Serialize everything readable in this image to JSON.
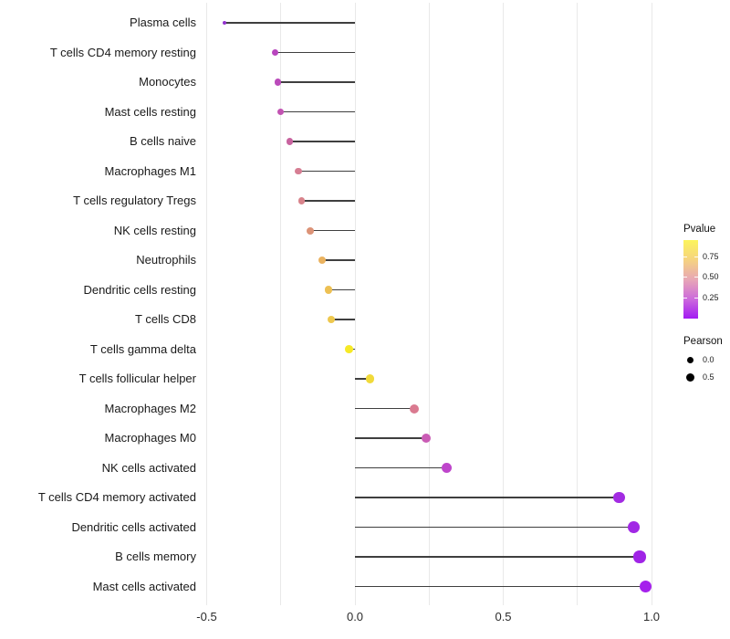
{
  "chart_data": {
    "type": "lollipop",
    "description": "Horizontal lollipop chart of immune cell Pearson correlations, point color mapped to Pvalue, point size mapped to Pearson",
    "xlabel": "",
    "ylabel": "",
    "xlim": [
      -0.62,
      1.08
    ],
    "grid": "vertical-only",
    "x_ticks": [
      {
        "value": -0.5,
        "label": "-0.5"
      },
      {
        "value": 0.0,
        "label": "0.0"
      },
      {
        "value": 0.5,
        "label": "0.5"
      },
      {
        "value": 1.0,
        "label": "1.0"
      }
    ],
    "x_minor_gridlines": [
      -0.25,
      0.25,
      0.75
    ],
    "stem_color": "#3f3f3f",
    "grid_color": "#e9e9e9",
    "points": [
      {
        "label": "Plasma cells",
        "pearson": -0.44,
        "color": "#9333ce",
        "size": 4.5
      },
      {
        "label": "T cells CD4 memory resting",
        "pearson": -0.27,
        "color": "#b845be",
        "size": 7.0
      },
      {
        "label": "Monocytes",
        "pearson": -0.26,
        "color": "#ba4aba",
        "size": 7.2
      },
      {
        "label": "Mast cells resting",
        "pearson": -0.25,
        "color": "#c253b2",
        "size": 7.4
      },
      {
        "label": "B cells naive",
        "pearson": -0.22,
        "color": "#c8639f",
        "size": 7.6
      },
      {
        "label": "Macrophages M1",
        "pearson": -0.19,
        "color": "#d67e93",
        "size": 7.8
      },
      {
        "label": "T cells regulatory  Tregs",
        "pearson": -0.18,
        "color": "#d8838b",
        "size": 7.8
      },
      {
        "label": "NK cells resting",
        "pearson": -0.15,
        "color": "#dc9377",
        "size": 8.0
      },
      {
        "label": "Neutrophils",
        "pearson": -0.11,
        "color": "#eab25f",
        "size": 8.2
      },
      {
        "label": "Dendritic cells resting",
        "pearson": -0.09,
        "color": "#edc053",
        "size": 8.4
      },
      {
        "label": "T cells CD8",
        "pearson": -0.08,
        "color": "#eec84e",
        "size": 8.4
      },
      {
        "label": "T cells gamma delta",
        "pearson": -0.02,
        "color": "#f6e926",
        "size": 8.8
      },
      {
        "label": "T cells follicular helper",
        "pearson": 0.05,
        "color": "#f1da3a",
        "size": 9.2
      },
      {
        "label": "Macrophages M2",
        "pearson": 0.2,
        "color": "#da7a90",
        "size": 10.0
      },
      {
        "label": "Macrophages M0",
        "pearson": 0.24,
        "color": "#ca5cb5",
        "size": 10.4
      },
      {
        "label": "NK cells activated",
        "pearson": 0.31,
        "color": "#be45cb",
        "size": 11.0
      },
      {
        "label": "T cells CD4 memory activated",
        "pearson": 0.89,
        "color": "#a22be2",
        "size": 12.6
      },
      {
        "label": "Dendritic cells activated",
        "pearson": 0.94,
        "color": "#a128e5",
        "size": 12.8
      },
      {
        "label": "B cells memory",
        "pearson": 0.96,
        "color": "#a024e6",
        "size": 13.2
      },
      {
        "label": "Mast cells activated",
        "pearson": 0.98,
        "color": "#a521ec",
        "size": 13.6
      }
    ],
    "legend": {
      "pvalue": {
        "title": "Pvalue",
        "tick_labels": [
          "0.75",
          "0.50",
          "0.25"
        ],
        "gradient_top_to_bottom": [
          "#fcf45c",
          "#f6d57e",
          "#e8a7b5",
          "#cb68dd",
          "#a21af2"
        ]
      },
      "pearson": {
        "title": "Pearson",
        "items": [
          {
            "label": "0.0",
            "size": 7
          },
          {
            "label": "0.5",
            "size": 9
          }
        ],
        "dot_color": "#000000"
      }
    }
  }
}
